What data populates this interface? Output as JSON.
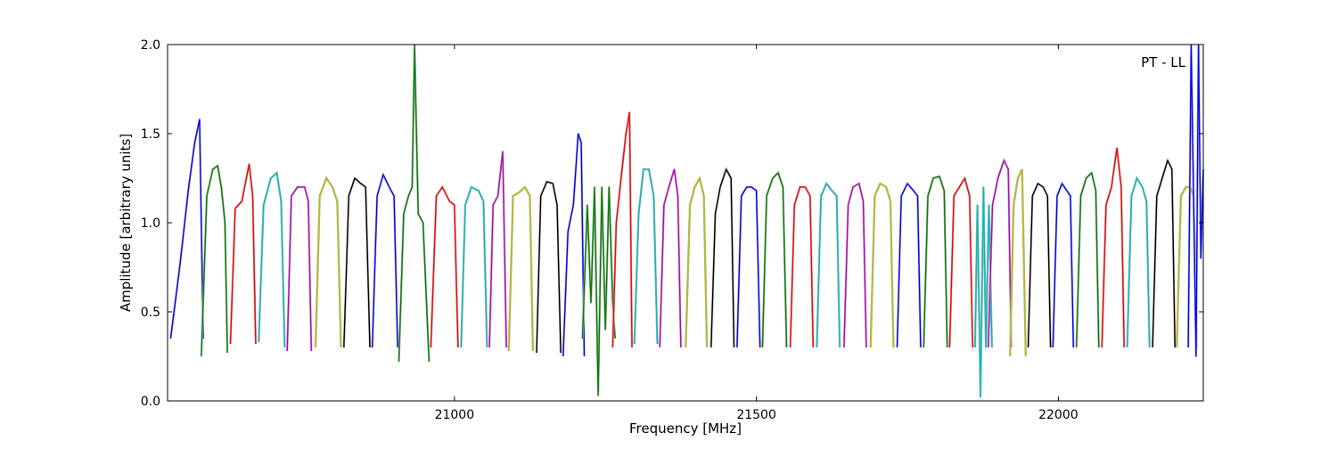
{
  "chart_data": {
    "type": "line",
    "title": "",
    "annotation": "PT - LL",
    "xlabel": "Frequency [MHz]",
    "ylabel": "Amplitude [arbitrary units]",
    "xlim": [
      20525,
      22240
    ],
    "ylim": [
      0.0,
      2.0
    ],
    "xticks": [
      21000,
      21500,
      22000
    ],
    "xtick_labels": [
      "21000",
      "21500",
      "22000"
    ],
    "yticks": [
      0.0,
      0.5,
      1.0,
      1.5,
      2.0
    ],
    "ytick_labels": [
      "0.0",
      "0.5",
      "1.0",
      "1.5",
      "2.0"
    ],
    "grid": false,
    "colors": {
      "blue": "#0000ff",
      "green": "#008000",
      "red": "#ff0000",
      "cyan": "#00bfbf",
      "magenta": "#bf00bf",
      "yellow": "#bfbf00",
      "black": "#000000",
      "background_trace": "#b0b0b0"
    },
    "series": [
      {
        "color": "blue",
        "x": [
          20530,
          20545,
          20560,
          20570,
          20578,
          20584
        ],
        "y": [
          0.35,
          0.75,
          1.2,
          1.45,
          1.58,
          0.35
        ]
      },
      {
        "color": "green",
        "x": [
          20581,
          20590,
          20600,
          20608,
          20614,
          20620,
          20624
        ],
        "y": [
          0.25,
          1.15,
          1.3,
          1.32,
          1.2,
          1.0,
          0.27
        ]
      },
      {
        "color": "red",
        "x": [
          20629,
          20637,
          20648,
          20660,
          20666,
          20671
        ],
        "y": [
          0.32,
          1.08,
          1.12,
          1.33,
          1.15,
          0.32
        ]
      },
      {
        "color": "cyan",
        "x": [
          20676,
          20684,
          20696,
          20706,
          20713,
          20719
        ],
        "y": [
          0.33,
          1.1,
          1.25,
          1.28,
          1.12,
          0.3
        ]
      },
      {
        "color": "magenta",
        "x": [
          20723,
          20730,
          20740,
          20752,
          20758,
          20763
        ],
        "y": [
          0.28,
          1.15,
          1.2,
          1.2,
          1.12,
          0.28
        ]
      },
      {
        "color": "yellow",
        "x": [
          20770,
          20777,
          20788,
          20798,
          20806,
          20812
        ],
        "y": [
          0.3,
          1.15,
          1.25,
          1.2,
          1.12,
          0.3
        ]
      },
      {
        "color": "black",
        "x": [
          20817,
          20825,
          20835,
          20845,
          20853,
          20860
        ],
        "y": [
          0.3,
          1.15,
          1.25,
          1.22,
          1.2,
          0.3
        ]
      },
      {
        "color": "blue",
        "x": [
          20864,
          20872,
          20882,
          20892,
          20900,
          20906
        ],
        "y": [
          0.3,
          1.15,
          1.27,
          1.2,
          1.15,
          0.3
        ]
      },
      {
        "color": "green",
        "x": [
          20908,
          20916,
          20924,
          20930,
          20934,
          20940,
          20948,
          20958
        ],
        "y": [
          0.22,
          1.05,
          1.15,
          1.2,
          2.0,
          1.05,
          1.0,
          0.22
        ]
      },
      {
        "color": "red",
        "x": [
          20961,
          20970,
          20980,
          20992,
          21000,
          21006
        ],
        "y": [
          0.3,
          1.15,
          1.2,
          1.12,
          1.1,
          0.3
        ]
      },
      {
        "color": "cyan",
        "x": [
          21011,
          21018,
          21028,
          21040,
          21048,
          21054
        ],
        "y": [
          0.3,
          1.1,
          1.2,
          1.18,
          1.12,
          0.3
        ]
      },
      {
        "color": "magenta",
        "x": [
          21058,
          21064,
          21072,
          21080,
          21086
        ],
        "y": [
          0.3,
          1.1,
          1.15,
          1.4,
          0.3
        ]
      },
      {
        "color": "yellow",
        "x": [
          21090,
          21097,
          21107,
          21117,
          21125,
          21130
        ],
        "y": [
          0.28,
          1.15,
          1.17,
          1.2,
          1.15,
          0.28
        ]
      },
      {
        "color": "black",
        "x": [
          21136,
          21143,
          21153,
          21163,
          21170,
          21176
        ],
        "y": [
          0.27,
          1.15,
          1.23,
          1.22,
          1.1,
          0.27
        ]
      },
      {
        "color": "blue",
        "x": [
          21180,
          21188,
          21197,
          21205,
          21210,
          21215
        ],
        "y": [
          0.25,
          0.95,
          1.1,
          1.5,
          1.45,
          0.25
        ]
      },
      {
        "color": "green",
        "x": [
          21212,
          21220,
          21226,
          21232,
          21238,
          21244,
          21250,
          21256,
          21262,
          21266
        ],
        "y": [
          0.35,
          1.1,
          0.55,
          1.2,
          0.03,
          1.2,
          0.4,
          1.2,
          0.55,
          0.35
        ]
      },
      {
        "color": "red",
        "x": [
          21262,
          21268,
          21276,
          21284,
          21290,
          21294
        ],
        "y": [
          0.3,
          1.0,
          1.25,
          1.5,
          1.62,
          0.3
        ]
      },
      {
        "color": "cyan",
        "x": [
          21298,
          21305,
          21313,
          21322,
          21330,
          21336
        ],
        "y": [
          0.32,
          1.05,
          1.3,
          1.3,
          1.15,
          0.32
        ]
      },
      {
        "color": "magenta",
        "x": [
          21340,
          21347,
          21355,
          21364,
          21370,
          21375
        ],
        "y": [
          0.3,
          1.1,
          1.2,
          1.3,
          1.15,
          0.3
        ]
      },
      {
        "color": "yellow",
        "x": [
          21383,
          21390,
          21398,
          21406,
          21413,
          21418
        ],
        "y": [
          0.3,
          1.1,
          1.2,
          1.25,
          1.15,
          0.3
        ]
      },
      {
        "color": "black",
        "x": [
          21425,
          21432,
          21440,
          21450,
          21458,
          21463
        ],
        "y": [
          0.3,
          1.05,
          1.2,
          1.3,
          1.25,
          0.3
        ]
      },
      {
        "color": "blue",
        "x": [
          21468,
          21475,
          21484,
          21492,
          21500,
          21506
        ],
        "y": [
          0.3,
          1.15,
          1.2,
          1.2,
          1.18,
          0.3
        ]
      },
      {
        "color": "green",
        "x": [
          21510,
          21517,
          21527,
          21536,
          21544,
          21550
        ],
        "y": [
          0.3,
          1.15,
          1.25,
          1.28,
          1.2,
          0.3
        ]
      },
      {
        "color": "red",
        "x": [
          21556,
          21563,
          21572,
          21581,
          21589,
          21594
        ],
        "y": [
          0.3,
          1.1,
          1.2,
          1.2,
          1.15,
          0.3
        ]
      },
      {
        "color": "cyan",
        "x": [
          21600,
          21607,
          21616,
          21625,
          21633,
          21638
        ],
        "y": [
          0.3,
          1.15,
          1.22,
          1.18,
          1.15,
          0.3
        ]
      },
      {
        "color": "magenta",
        "x": [
          21645,
          21652,
          21660,
          21670,
          21677,
          21682
        ],
        "y": [
          0.3,
          1.1,
          1.2,
          1.22,
          1.12,
          0.3
        ]
      },
      {
        "color": "yellow",
        "x": [
          21689,
          21696,
          21705,
          21715,
          21722,
          21727
        ],
        "y": [
          0.3,
          1.15,
          1.22,
          1.2,
          1.12,
          0.3
        ]
      },
      {
        "color": "blue",
        "x": [
          21733,
          21740,
          21750,
          21760,
          21767,
          21772
        ],
        "y": [
          0.3,
          1.15,
          1.22,
          1.18,
          1.15,
          0.3
        ]
      },
      {
        "color": "green",
        "x": [
          21777,
          21784,
          21793,
          21803,
          21811,
          21816
        ],
        "y": [
          0.3,
          1.15,
          1.25,
          1.26,
          1.18,
          0.3
        ]
      },
      {
        "color": "red",
        "x": [
          21820,
          21827,
          21836,
          21845,
          21853,
          21858
        ],
        "y": [
          0.3,
          1.15,
          1.2,
          1.25,
          1.15,
          0.3
        ]
      },
      {
        "color": "cyan",
        "x": [
          21862,
          21866,
          21871,
          21876,
          21880,
          21885,
          21890
        ],
        "y": [
          0.3,
          1.1,
          0.02,
          1.2,
          0.3,
          1.1,
          0.3
        ]
      },
      {
        "color": "magenta",
        "x": [
          21884,
          21891,
          21900,
          21910,
          21917,
          21922
        ],
        "y": [
          0.3,
          1.1,
          1.25,
          1.35,
          1.3,
          0.3
        ]
      },
      {
        "color": "yellow",
        "x": [
          21920,
          21926,
          21933,
          21940,
          21946
        ],
        "y": [
          0.25,
          1.1,
          1.25,
          1.3,
          0.25
        ]
      },
      {
        "color": "black",
        "x": [
          21950,
          21957,
          21966,
          21975,
          21982,
          21987
        ],
        "y": [
          0.3,
          1.15,
          1.22,
          1.2,
          1.15,
          0.3
        ]
      },
      {
        "color": "blue",
        "x": [
          21991,
          21998,
          22006,
          22014,
          22020,
          22025
        ],
        "y": [
          0.3,
          1.15,
          1.22,
          1.18,
          1.15,
          0.3
        ]
      },
      {
        "color": "green",
        "x": [
          22030,
          22037,
          22046,
          22055,
          22062,
          22067
        ],
        "y": [
          0.3,
          1.15,
          1.25,
          1.28,
          1.18,
          0.3
        ]
      },
      {
        "color": "red",
        "x": [
          22072,
          22079,
          22088,
          22097,
          22104,
          22109
        ],
        "y": [
          0.3,
          1.1,
          1.2,
          1.42,
          1.2,
          0.3
        ]
      },
      {
        "color": "cyan",
        "x": [
          22114,
          22121,
          22130,
          22139,
          22146,
          22151
        ],
        "y": [
          0.3,
          1.15,
          1.25,
          1.2,
          1.12,
          0.3
        ]
      },
      {
        "color": "black",
        "x": [
          22156,
          22163,
          22172,
          22181,
          22188,
          22193
        ],
        "y": [
          0.3,
          1.15,
          1.25,
          1.35,
          1.3,
          0.3
        ]
      },
      {
        "color": "yellow",
        "x": [
          22196,
          22203,
          22211,
          22218,
          22224,
          22229
        ],
        "y": [
          0.3,
          1.15,
          1.2,
          1.2,
          1.15,
          0.3
        ]
      },
      {
        "color": "blue",
        "x": [
          22215,
          22220,
          22224,
          22228,
          22232,
          22236,
          22240
        ],
        "y": [
          0.3,
          2.0,
          1.1,
          0.25,
          2.0,
          0.8,
          1.3
        ]
      }
    ]
  }
}
